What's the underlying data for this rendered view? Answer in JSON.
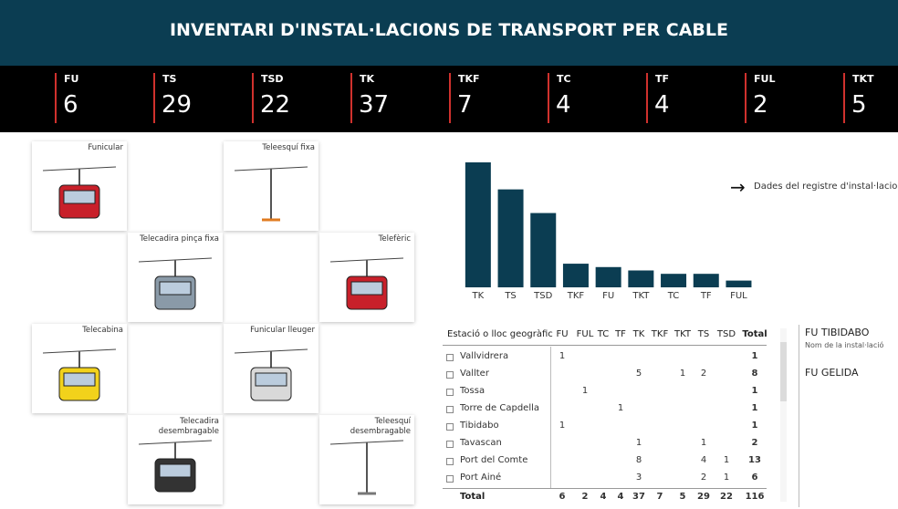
{
  "header": {
    "title": "INVENTARI D'INSTAL·LACIONS DE TRANSPORT PER CABLE"
  },
  "kpis": [
    {
      "label": "FU",
      "value": 6
    },
    {
      "label": "TS",
      "value": 29
    },
    {
      "label": "TSD",
      "value": 22
    },
    {
      "label": "TK",
      "value": 37
    },
    {
      "label": "TKF",
      "value": 7
    },
    {
      "label": "TC",
      "value": 4
    },
    {
      "label": "TF",
      "value": 4
    },
    {
      "label": "FUL",
      "value": 2
    },
    {
      "label": "TKT",
      "value": 5
    }
  ],
  "tiles": [
    "Funicular",
    "Teleesquí fixa",
    "Telecadira pinça fixa",
    "Telefèric",
    "Telecabina",
    "Funicular lleuger",
    "Telecadira desembragable",
    "Teleesquí desembragable"
  ],
  "chart_data": {
    "type": "bar",
    "categories": [
      "TK",
      "TS",
      "TSD",
      "TKF",
      "FU",
      "TKT",
      "TC",
      "TF",
      "FUL"
    ],
    "values": [
      37,
      29,
      22,
      7,
      6,
      5,
      4,
      4,
      2
    ],
    "color": "#0b3d52",
    "ylim": [
      0,
      37
    ],
    "grid": false
  },
  "link": {
    "text": "Dades del registre d'instal·lacions"
  },
  "table": {
    "columns": [
      "Estació o lloc geogràfic",
      "FU",
      "FUL",
      "TC",
      "TF",
      "TK",
      "TKF",
      "TKT",
      "TS",
      "TSD",
      "Total"
    ],
    "rows": [
      {
        "name": "Vallvidrera",
        "cells": [
          1,
          null,
          null,
          null,
          null,
          null,
          null,
          null,
          null,
          1
        ]
      },
      {
        "name": "Vallter",
        "cells": [
          null,
          null,
          null,
          null,
          5,
          null,
          1,
          2,
          null,
          8
        ]
      },
      {
        "name": "Tossa",
        "cells": [
          null,
          1,
          null,
          null,
          null,
          null,
          null,
          null,
          null,
          1
        ]
      },
      {
        "name": "Torre de Capdella",
        "cells": [
          null,
          null,
          null,
          1,
          null,
          null,
          null,
          null,
          null,
          1
        ]
      },
      {
        "name": "Tibidabo",
        "cells": [
          1,
          null,
          null,
          null,
          null,
          null,
          null,
          null,
          null,
          1
        ]
      },
      {
        "name": "Tavascan",
        "cells": [
          null,
          null,
          null,
          null,
          1,
          null,
          null,
          1,
          null,
          2
        ]
      },
      {
        "name": "Port del Comte",
        "cells": [
          null,
          null,
          null,
          null,
          8,
          null,
          null,
          4,
          1,
          13
        ]
      },
      {
        "name": "Port Ainé",
        "cells": [
          null,
          null,
          null,
          null,
          3,
          null,
          null,
          2,
          1,
          6
        ]
      }
    ],
    "total": {
      "name": "Total",
      "cells": [
        6,
        2,
        4,
        4,
        37,
        7,
        5,
        29,
        22,
        116
      ]
    }
  },
  "details": [
    {
      "title": "FU TIBIDABO",
      "fields": [
        {
          "value": "",
          "label": "Nom de la instal·lació"
        }
      ]
    },
    {
      "title": "FU GELIDA",
      "fields": []
    }
  ]
}
